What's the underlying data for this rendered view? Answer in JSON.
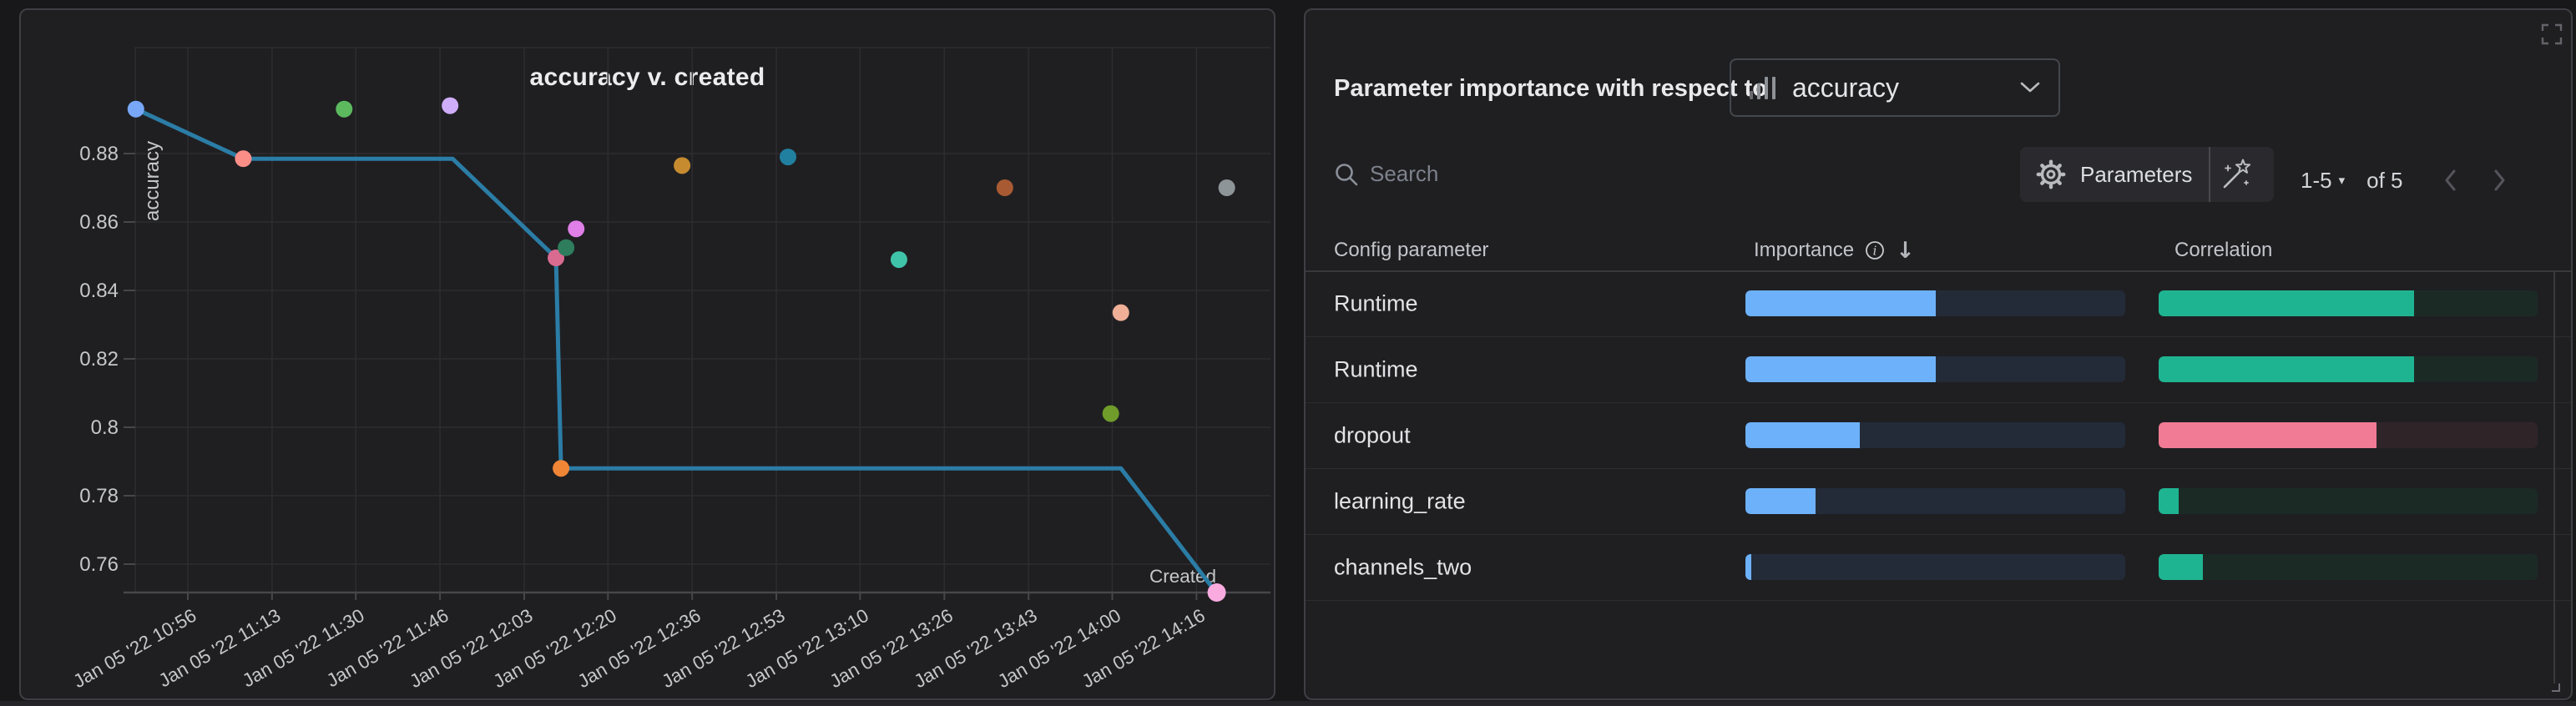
{
  "chart_data": {
    "type": "scatter_line",
    "title": "accuracy v. created",
    "xlabel": "Created",
    "ylabel": "accuracy",
    "grid": true,
    "legend": false,
    "x_axis": {
      "ticks": [
        {
          "label": "Jan 05 '22 10:56",
          "minutes": 656
        },
        {
          "label": "Jan 05 '22 11:13",
          "minutes": 672.7
        },
        {
          "label": "Jan 05 '22 11:30",
          "minutes": 689.3
        },
        {
          "label": "Jan 05 '22 11:46",
          "minutes": 706
        },
        {
          "label": "Jan 05 '22 12:03",
          "minutes": 722.7
        },
        {
          "label": "Jan 05 '22 12:20",
          "minutes": 739.3
        },
        {
          "label": "Jan 05 '22 12:36",
          "minutes": 756
        },
        {
          "label": "Jan 05 '22 12:53",
          "minutes": 772.7
        },
        {
          "label": "Jan 05 '22 13:10",
          "minutes": 789.3
        },
        {
          "label": "Jan 05 '22 13:26",
          "minutes": 806
        },
        {
          "label": "Jan 05 '22 13:43",
          "minutes": 822.7
        },
        {
          "label": "Jan 05 '22 14:00",
          "minutes": 839.3
        },
        {
          "label": "Jan 05 '22 14:16",
          "minutes": 856
        }
      ]
    },
    "y_axis": {
      "range": [
        0.7515,
        0.9105
      ],
      "ticks": [
        {
          "label": "0.88",
          "value": 0.88
        },
        {
          "label": "0.86",
          "value": 0.86
        },
        {
          "label": "0.84",
          "value": 0.84
        },
        {
          "label": "0.82",
          "value": 0.82
        },
        {
          "label": "0.8",
          "value": 0.8
        },
        {
          "label": "0.78",
          "value": 0.78
        },
        {
          "label": "0.76",
          "value": 0.76
        }
      ]
    },
    "points": [
      {
        "created": "Jan 05 '22 10:46",
        "minutes": 645.7,
        "accuracy": 0.893,
        "color": "#78a7f8"
      },
      {
        "created": "Jan 05 '22 11:07",
        "minutes": 667,
        "accuracy": 0.8785,
        "color": "#fb8f88"
      },
      {
        "created": "Jan 05 '22 11:27",
        "minutes": 687,
        "accuracy": 0.893,
        "color": "#5cb95e"
      },
      {
        "created": "Jan 05 '22 11:48",
        "minutes": 708,
        "accuracy": 0.894,
        "color": "#cfadf8"
      },
      {
        "created": "Jan 05 '22 12:09",
        "minutes": 729,
        "accuracy": 0.8495,
        "color": "#d96b91"
      },
      {
        "created": "Jan 05 '22 12:11",
        "minutes": 731,
        "accuracy": 0.8525,
        "color": "#2e7d5c"
      },
      {
        "created": "Jan 05 '22 12:13",
        "minutes": 733,
        "accuracy": 0.858,
        "color": "#e07fe8"
      },
      {
        "created": "Jan 05 '22 12:10",
        "minutes": 730,
        "accuracy": 0.788,
        "color": "#f08536"
      },
      {
        "created": "Jan 05 '22 12:34",
        "minutes": 754,
        "accuracy": 0.8765,
        "color": "#c78b2f"
      },
      {
        "created": "Jan 05 '22 12:55",
        "minutes": 775,
        "accuracy": 0.879,
        "color": "#2180a0"
      },
      {
        "created": "Jan 05 '22 13:17",
        "minutes": 797,
        "accuracy": 0.849,
        "color": "#3fc3a9"
      },
      {
        "created": "Jan 05 '22 13:38",
        "minutes": 818,
        "accuracy": 0.87,
        "color": "#a85b32"
      },
      {
        "created": "Jan 05 '22 14:01",
        "minutes": 841,
        "accuracy": 0.8335,
        "color": "#efb097"
      },
      {
        "created": "Jan 05 '22 13:59",
        "minutes": 839,
        "accuracy": 0.804,
        "color": "#6f9c2a"
      },
      {
        "created": "Jan 05 '22 14:22",
        "minutes": 862,
        "accuracy": 0.87,
        "color": "#8e9599"
      },
      {
        "created": "Jan 05 '22 14:20",
        "minutes": 860,
        "accuracy": 0.7515,
        "color": "#f9abdf",
        "radius": 11
      }
    ],
    "line": {
      "color": "#2b7da6",
      "vertices": [
        [
          645.7,
          0.893
        ],
        [
          667,
          0.8785
        ],
        [
          708.5,
          0.8785
        ],
        [
          729,
          0.8495
        ],
        [
          730,
          0.788
        ],
        [
          841,
          0.788
        ],
        [
          860,
          0.7515
        ]
      ]
    }
  },
  "right_panel": {
    "header_label": "Parameter importance with respect to",
    "metric_dropdown": {
      "value": "accuracy"
    },
    "toolbar": {
      "search_placeholder": "Search",
      "parameters_label": "Parameters",
      "pagination_range": "1-5",
      "pagination_of": "of 5"
    },
    "icons": {
      "caret_down": "▾",
      "sort_desc": "↓"
    },
    "table": {
      "col_config": "Config parameter",
      "col_importance": "Importance",
      "col_correlation": "Correlation",
      "rows": [
        {
          "param": "Runtime",
          "importance": 0.5,
          "correlation": 0.675,
          "direction": "positive"
        },
        {
          "param": "Runtime",
          "importance": 0.5,
          "correlation": 0.675,
          "direction": "positive"
        },
        {
          "param": "dropout",
          "importance": 0.3,
          "correlation": 0.575,
          "direction": "negative"
        },
        {
          "param": "learning_rate",
          "importance": 0.185,
          "correlation": 0.053,
          "direction": "positive"
        },
        {
          "param": "channels_two",
          "importance": 0.015,
          "correlation": 0.117,
          "direction": "positive"
        }
      ],
      "colors": {
        "importance_fill": "#6db1fb",
        "importance_track": "#232b38",
        "positive_fill": "#1fb491",
        "positive_track": "#1c2a26",
        "negative_fill": "#f17b95",
        "negative_track": "#2f2428"
      }
    }
  }
}
